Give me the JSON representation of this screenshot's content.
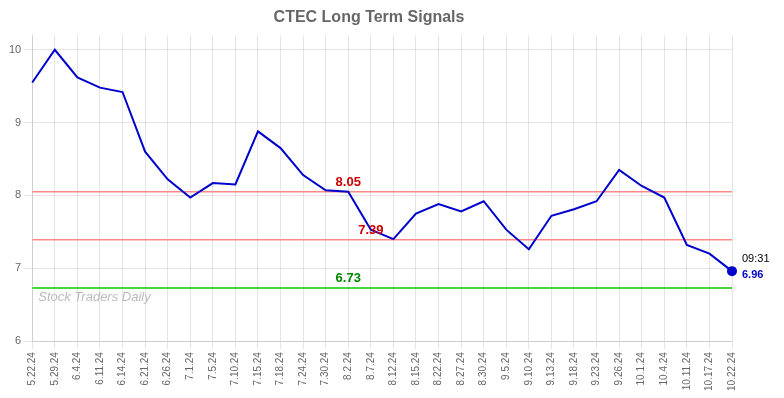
{
  "chart_data": {
    "type": "line",
    "title": "CTEC Long Term Signals",
    "categories": [
      "5.22.24",
      "5.29.24",
      "6.4.24",
      "6.11.24",
      "6.14.24",
      "6.21.24",
      "6.26.24",
      "7.1.24",
      "7.5.24",
      "7.10.24",
      "7.15.24",
      "7.18.24",
      "7.24.24",
      "7.30.24",
      "8.2.24",
      "8.7.24",
      "8.12.24",
      "8.15.24",
      "8.22.24",
      "8.27.24",
      "8.30.24",
      "9.5.24",
      "9.10.24",
      "9.13.24",
      "9.18.24",
      "9.23.24",
      "9.26.24",
      "10.1.24",
      "10.4.24",
      "10.11.24",
      "10.17.24",
      "10.22.24"
    ],
    "values": [
      9.55,
      10.0,
      9.62,
      9.48,
      9.42,
      8.6,
      8.22,
      7.97,
      8.17,
      8.15,
      8.88,
      8.65,
      8.28,
      8.07,
      8.05,
      7.53,
      7.4,
      7.75,
      7.88,
      7.78,
      7.92,
      7.53,
      7.26,
      7.72,
      7.81,
      7.92,
      8.35,
      8.13,
      7.97,
      7.32,
      7.2,
      6.96
    ],
    "color": "#0000cc",
    "ylim": [
      6.0,
      10.2
    ],
    "yticks": [
      6,
      7,
      8,
      9,
      10
    ],
    "grid": true,
    "reference_lines": [
      {
        "value": 8.05,
        "label": "8.05",
        "color": "#ff8888",
        "label_color": "#cc0000"
      },
      {
        "value": 7.39,
        "label": "7.39",
        "color": "#ff8888",
        "label_color": "#cc0000"
      },
      {
        "value": 6.73,
        "label": "6.73",
        "color": "#00cc00",
        "label_color": "#008800"
      }
    ],
    "annotations": [
      "09:31",
      "6.96"
    ],
    "watermark": "Stock Traders Daily"
  }
}
